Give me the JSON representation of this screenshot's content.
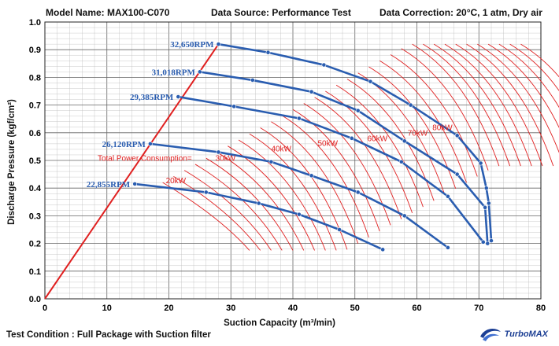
{
  "header": {
    "model": "Model Name: MAX100-C070",
    "source": "Data Source: Performance Test",
    "correction": "Data Correction: 20°C, 1 atm, Dry air"
  },
  "footer": {
    "condition": "Test Condition : Full Package with Suction filter"
  },
  "logo": {
    "text": "TurboMAX",
    "color": "#1c3f94"
  },
  "colors": {
    "curve": "#2a5db0",
    "power": "#e02020",
    "surge": "#e02020",
    "grid": "#9a9a9a",
    "rpm_label": "#2a5db0"
  },
  "chart_data": {
    "type": "line",
    "xlabel": "Suction Capacity (m³/min)",
    "ylabel": "Discharge Pressure (kgf/cm²)",
    "xlim": [
      0,
      80
    ],
    "ylim": [
      0,
      1.0
    ],
    "x_ticks": [
      "0",
      "10",
      "20",
      "30",
      "40",
      "50",
      "60",
      "70",
      "80"
    ],
    "y_ticks": [
      "0.0",
      "0.1",
      "0.2",
      "0.3",
      "0.4",
      "0.5",
      "0.6",
      "0.7",
      "0.8",
      "0.9",
      "1.0"
    ],
    "grid": true,
    "surge_line": [
      [
        0,
        0
      ],
      [
        28,
        0.92
      ]
    ],
    "series": [
      {
        "name": "32,650RPM",
        "points": [
          [
            28,
            0.92
          ],
          [
            36,
            0.89
          ],
          [
            45,
            0.845
          ],
          [
            52.5,
            0.785
          ],
          [
            59,
            0.7
          ],
          [
            66.5,
            0.59
          ],
          [
            70.3,
            0.49
          ],
          [
            71.2,
            0.4
          ],
          [
            71.6,
            0.345
          ],
          [
            72,
            0.21
          ]
        ]
      },
      {
        "name": "31,018RPM",
        "points": [
          [
            25,
            0.82
          ],
          [
            33.5,
            0.79
          ],
          [
            43,
            0.748
          ],
          [
            50.5,
            0.68
          ],
          [
            58,
            0.57
          ],
          [
            66.5,
            0.45
          ],
          [
            71,
            0.33
          ],
          [
            71.4,
            0.2
          ]
        ]
      },
      {
        "name": "29,385RPM",
        "points": [
          [
            21.5,
            0.73
          ],
          [
            30.5,
            0.695
          ],
          [
            41,
            0.652
          ],
          [
            49.5,
            0.58
          ],
          [
            57.5,
            0.495
          ],
          [
            65,
            0.37
          ],
          [
            70.7,
            0.205
          ]
        ]
      },
      {
        "name": "26,120RPM",
        "points": [
          [
            17,
            0.56
          ],
          [
            28,
            0.53
          ],
          [
            36.5,
            0.495
          ],
          [
            43,
            0.445
          ],
          [
            50.5,
            0.385
          ],
          [
            58,
            0.3
          ],
          [
            65,
            0.185
          ]
        ]
      },
      {
        "name": "22,855RPM",
        "points": [
          [
            14.5,
            0.415
          ],
          [
            26,
            0.385
          ],
          [
            34.5,
            0.345
          ],
          [
            41,
            0.305
          ],
          [
            47.5,
            0.25
          ],
          [
            54.5,
            0.178
          ]
        ]
      }
    ],
    "annotations": [
      {
        "text": "Total Power Consumption=",
        "x": 8.5,
        "y": 0.498
      },
      {
        "text": "20kW",
        "x": 19.5,
        "y": 0.418
      },
      {
        "text": "30kW",
        "x": 27.5,
        "y": 0.498
      },
      {
        "text": "40kW",
        "x": 36.5,
        "y": 0.532
      },
      {
        "text": "50kW",
        "x": 44,
        "y": 0.552
      },
      {
        "text": "60kW",
        "x": 52,
        "y": 0.57
      },
      {
        "text": "70kW",
        "x": 58.5,
        "y": 0.59
      },
      {
        "text": "80kW",
        "x": 62.5,
        "y": 0.61
      }
    ]
  }
}
